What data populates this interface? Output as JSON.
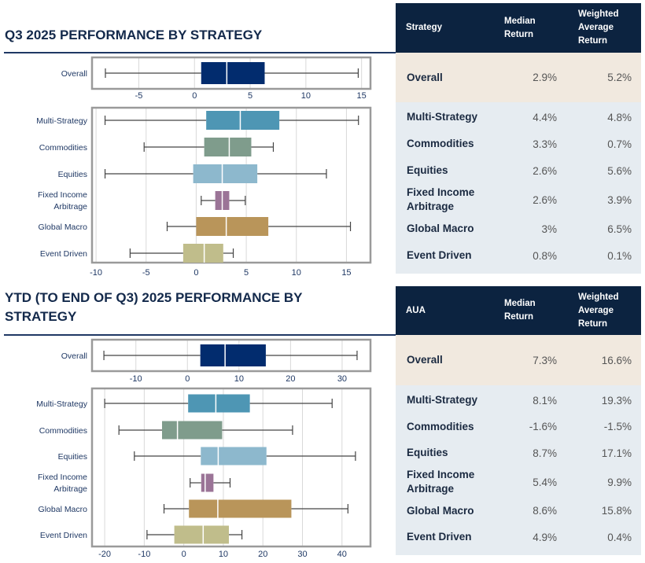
{
  "sections": [
    {
      "title": "Q3 2025 PERFORMANCE BY STRATEGY",
      "table": {
        "headers": [
          "Strategy",
          "Median Return",
          "Weighted Average Return"
        ],
        "rows": [
          {
            "label": "Overall",
            "median": "2.9%",
            "weighted": "5.2%"
          },
          {
            "label": "Multi-Strategy",
            "median": "4.4%",
            "weighted": "4.8%"
          },
          {
            "label": "Commodities",
            "median": "3.3%",
            "weighted": "0.7%"
          },
          {
            "label": "Equities",
            "median": "2.6%",
            "weighted": "5.6%"
          },
          {
            "label": "Fixed Income Arbitrage",
            "median": "2.6%",
            "weighted": "3.9%"
          },
          {
            "label": "Global Macro",
            "median": "3%",
            "weighted": "6.5%"
          },
          {
            "label": "Event Driven",
            "median": "0.8%",
            "weighted": "0.1%"
          }
        ]
      }
    },
    {
      "title": "YTD (TO END OF Q3) 2025 PERFORMANCE BY STRATEGY",
      "table": {
        "headers": [
          "AUA",
          "Median Return",
          "Weighted Average Return"
        ],
        "rows": [
          {
            "label": "Overall",
            "median": "7.3%",
            "weighted": "16.6%"
          },
          {
            "label": "Multi-Strategy",
            "median": "8.1%",
            "weighted": "19.3%"
          },
          {
            "label": "Commodities",
            "median": "-1.6%",
            "weighted": "-1.5%"
          },
          {
            "label": "Equities",
            "median": "8.7%",
            "weighted": "17.1%"
          },
          {
            "label": "Fixed Income Arbitrage",
            "median": "5.4%",
            "weighted": "9.9%"
          },
          {
            "label": "Global Macro",
            "median": "8.6%",
            "weighted": "15.8%"
          },
          {
            "label": "Event Driven",
            "median": "4.9%",
            "weighted": "0.4%"
          }
        ]
      }
    }
  ],
  "colors": {
    "Overall": "#022c6e",
    "Multi-Strategy": "#4e96b4",
    "Commodities": "#7f9c8c",
    "Equities": "#8db8cd",
    "Fixed Income Arbitrage": "#9b7497",
    "Global Macro": "#b9955a",
    "Event Driven": "#c0bd8b",
    "header": "#0c2340",
    "title": "#13294b"
  },
  "chart_data": [
    {
      "type": "box",
      "orientation": "horizontal",
      "grid": true,
      "categories": [
        "Overall"
      ],
      "xticks": [
        -5,
        0,
        5,
        10,
        15
      ],
      "xlim": [
        -9.2,
        15.8
      ],
      "stats": [
        {
          "min": -8.0,
          "q1": 0.6,
          "median": 2.9,
          "q3": 6.3,
          "max": 14.7
        }
      ]
    },
    {
      "type": "box",
      "orientation": "horizontal",
      "grid": true,
      "categories": [
        "Multi-Strategy",
        "Commodities",
        "Equities",
        "Fixed Income Arbitrage",
        "Global Macro",
        "Event Driven"
      ],
      "xticks": [
        -10,
        -5,
        0,
        5,
        10,
        15
      ],
      "xlim": [
        -10.4,
        17.4
      ],
      "stats": [
        {
          "min": -9.1,
          "q1": 1.0,
          "median": 4.4,
          "q3": 8.3,
          "max": 16.2
        },
        {
          "min": -5.2,
          "q1": 0.8,
          "median": 3.3,
          "q3": 5.5,
          "max": 7.7
        },
        {
          "min": -9.1,
          "q1": -0.3,
          "median": 2.6,
          "q3": 6.1,
          "max": 13.0
        },
        {
          "min": 0.5,
          "q1": 1.9,
          "median": 2.6,
          "q3": 3.3,
          "max": 4.9
        },
        {
          "min": -2.9,
          "q1": 0.0,
          "median": 3.0,
          "q3": 7.2,
          "max": 15.4
        },
        {
          "min": -6.6,
          "q1": -1.3,
          "median": 0.8,
          "q3": 2.7,
          "max": 3.7
        }
      ]
    },
    {
      "type": "box",
      "orientation": "horizontal",
      "grid": true,
      "categories": [
        "Overall"
      ],
      "xticks": [
        -10,
        0,
        10,
        20,
        30
      ],
      "xlim": [
        -18.5,
        35.5
      ],
      "stats": [
        {
          "min": -16.2,
          "q1": 2.5,
          "median": 7.3,
          "q3": 15.2,
          "max": 32.9
        }
      ]
    },
    {
      "type": "box",
      "orientation": "horizontal",
      "grid": true,
      "categories": [
        "Multi-Strategy",
        "Commodities",
        "Equities",
        "Fixed Income Arbitrage",
        "Global Macro",
        "Event Driven"
      ],
      "xticks": [
        -20,
        -10,
        0,
        10,
        20,
        30,
        40
      ],
      "xlim": [
        -23.2,
        47.2
      ],
      "stats": [
        {
          "min": -20.0,
          "q1": 1.1,
          "median": 8.1,
          "q3": 16.7,
          "max": 37.5
        },
        {
          "min": -16.4,
          "q1": -5.5,
          "median": -1.6,
          "q3": 9.7,
          "max": 27.5
        },
        {
          "min": -12.5,
          "q1": 4.3,
          "median": 8.7,
          "q3": 20.9,
          "max": 43.4
        },
        {
          "min": 1.6,
          "q1": 4.4,
          "median": 5.4,
          "q3": 7.5,
          "max": 11.7
        },
        {
          "min": -5.0,
          "q1": 1.3,
          "median": 8.6,
          "q3": 27.2,
          "max": 41.5
        },
        {
          "min": -9.3,
          "q1": -2.4,
          "median": 4.9,
          "q3": 11.4,
          "max": 14.7
        }
      ]
    }
  ]
}
